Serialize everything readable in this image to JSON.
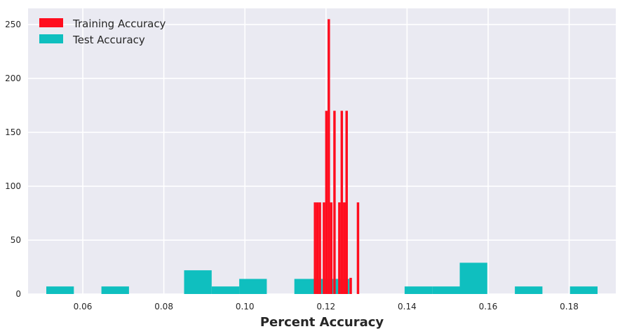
{
  "chart_data": {
    "type": "bar",
    "title": "",
    "xlabel": "Percent Accuracy",
    "ylabel": "",
    "xlim": [
      0.0465,
      0.1915
    ],
    "ylim": [
      0,
      265
    ],
    "xticks": [
      0.06,
      0.08,
      0.1,
      0.12,
      0.14,
      0.16,
      0.18
    ],
    "xtick_labels": [
      "0.06",
      "0.08",
      "0.10",
      "0.12",
      "0.14",
      "0.16",
      "0.18"
    ],
    "yticks": [
      0,
      50,
      100,
      150,
      200,
      250
    ],
    "ytick_labels": [
      "0",
      "50",
      "100",
      "150",
      "200",
      "250"
    ],
    "grid": true,
    "legend_position": "top-left",
    "series": [
      {
        "name": "Training Accuracy",
        "color": "#ff0d1e",
        "bins": [
          {
            "x0": 0.117,
            "x1": 0.1176,
            "count": 85
          },
          {
            "x0": 0.1176,
            "x1": 0.1182,
            "count": 85
          },
          {
            "x0": 0.1182,
            "x1": 0.1188,
            "count": 85
          },
          {
            "x0": 0.1192,
            "x1": 0.1198,
            "count": 85
          },
          {
            "x0": 0.1198,
            "x1": 0.1204,
            "count": 170
          },
          {
            "x0": 0.1204,
            "x1": 0.121,
            "count": 255
          },
          {
            "x0": 0.121,
            "x1": 0.1216,
            "count": 85
          },
          {
            "x0": 0.1218,
            "x1": 0.1224,
            "count": 170
          },
          {
            "x0": 0.123,
            "x1": 0.1236,
            "count": 85
          },
          {
            "x0": 0.1236,
            "x1": 0.1242,
            "count": 170
          },
          {
            "x0": 0.1242,
            "x1": 0.1248,
            "count": 85
          },
          {
            "x0": 0.1248,
            "x1": 0.1254,
            "count": 170
          },
          {
            "x0": 0.1258,
            "x1": 0.1264,
            "count": 15
          },
          {
            "x0": 0.1276,
            "x1": 0.1282,
            "count": 85
          }
        ]
      },
      {
        "name": "Test Accuracy",
        "color": "#0fbfbf",
        "bins": [
          {
            "x0": 0.051,
            "x1": 0.0578,
            "count": 7
          },
          {
            "x0": 0.0646,
            "x1": 0.0714,
            "count": 7
          },
          {
            "x0": 0.085,
            "x1": 0.0918,
            "count": 22
          },
          {
            "x0": 0.0918,
            "x1": 0.0986,
            "count": 7
          },
          {
            "x0": 0.0986,
            "x1": 0.1054,
            "count": 14
          },
          {
            "x0": 0.1122,
            "x1": 0.119,
            "count": 14
          },
          {
            "x0": 0.119,
            "x1": 0.1258,
            "count": 14
          },
          {
            "x0": 0.1394,
            "x1": 0.1462,
            "count": 7
          },
          {
            "x0": 0.1462,
            "x1": 0.153,
            "count": 7
          },
          {
            "x0": 0.153,
            "x1": 0.1598,
            "count": 29
          },
          {
            "x0": 0.1666,
            "x1": 0.1734,
            "count": 7
          },
          {
            "x0": 0.1802,
            "x1": 0.187,
            "count": 7
          }
        ]
      }
    ]
  }
}
